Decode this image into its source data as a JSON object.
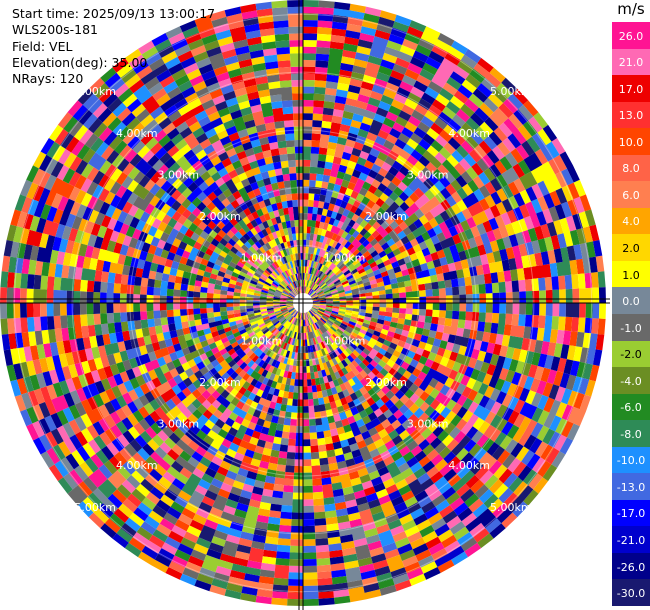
{
  "info": {
    "start_time": "Start time: 2025/09/13 13:00:17",
    "instrument": "WLS200s-181",
    "field": "Field: VEL",
    "elevation": "Elevation(deg): 35.00",
    "nrays": "NRays: 120"
  },
  "colorbar": {
    "unit": "m/s",
    "levels": [
      "26.0",
      "21.0",
      "17.0",
      "13.0",
      "10.0",
      "8.0",
      "6.0",
      "4.0",
      "2.0",
      "1.0",
      "0.0",
      "-1.0",
      "-2.0",
      "-4.0",
      "-6.0",
      "-8.0",
      "-10.0",
      "-13.0",
      "-17.0",
      "-21.0",
      "-26.0",
      "-30.0"
    ],
    "colors": [
      "#ff1493",
      "#ff69b4",
      "#ee0000",
      "#ff3030",
      "#ff4500",
      "#ff6347",
      "#ff7f50",
      "#ffa500",
      "#ffd700",
      "#ffff00",
      "#778899",
      "#696969",
      "#9acd32",
      "#6b8e23",
      "#228b22",
      "#2e8b57",
      "#1e90ff",
      "#4169e1",
      "#0000ff",
      "#0000cd",
      "#00008b",
      "#191970"
    ]
  },
  "range_labels": [
    "1.00km",
    "2.00km",
    "3.00km",
    "4.00km",
    "5.00km"
  ],
  "icons": {
    "cursor": "crosshair-icon"
  }
}
